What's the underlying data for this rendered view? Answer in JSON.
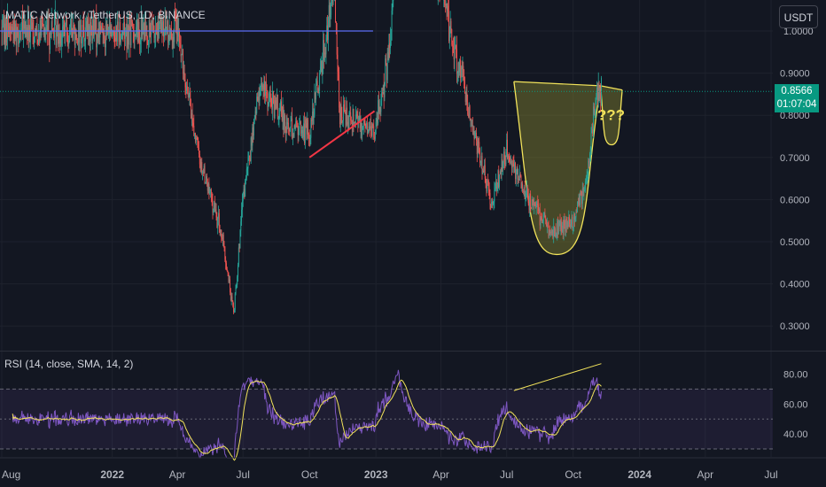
{
  "header": {
    "symbol_title": "MATIC Network / TetherUS, 1D, BINANCE",
    "currency_button": "USDT"
  },
  "price_tag": {
    "price": "0.8566",
    "countdown": "01:07:04"
  },
  "annotation_text": "???",
  "rsi": {
    "label": "RSI (14, close, SMA, 14, 2)"
  },
  "colors": {
    "background": "#131722",
    "candle_up": "#26a69a",
    "candle_down": "#ef5350",
    "price_line": "#089981",
    "cup_shape": "#f2e35b",
    "cup_fill": "#7a7a2e",
    "rsi_line": "#7e57c2",
    "rsi_ma": "#f2e35b",
    "resistance_line": "#5b6ef5",
    "trendline": "#f23645"
  },
  "chart_data": [
    {
      "type": "candlestick",
      "title": "MATIC Network / TetherUS, 1D, BINANCE",
      "y_ticks": [
        "1.0000",
        "0.9000",
        "0.8000",
        "0.7000",
        "0.6000",
        "0.5000",
        "0.4000",
        "0.3000"
      ],
      "ylim": [
        0.27,
        1.07
      ],
      "x_ticks": [
        "Aug",
        "2022",
        "Apr",
        "Jul",
        "Oct",
        "2023",
        "Apr",
        "Jul",
        "Oct",
        "2024",
        "Apr",
        "Jul"
      ],
      "last_price": 0.8566,
      "path_points": [
        [
          "2021-08",
          1.01
        ],
        [
          "2021-09",
          1.0
        ],
        [
          "2022-04",
          1.0
        ],
        [
          "2022-05",
          0.7
        ],
        [
          "2022-06",
          0.52
        ],
        [
          "2022-06-18",
          0.33
        ],
        [
          "2022-07",
          0.6
        ],
        [
          "2022-07-25",
          0.88
        ],
        [
          "2022-08",
          0.85
        ],
        [
          "2022-09",
          0.78
        ],
        [
          "2022-10",
          0.76
        ],
        [
          "2022-11-05",
          1.1
        ],
        [
          "2022-11-12",
          0.8
        ],
        [
          "2022-12",
          0.8
        ],
        [
          "2022-12-30",
          0.76
        ],
        [
          "2023-01-20",
          0.95
        ],
        [
          "2023-02",
          1.3
        ],
        [
          "2023-04",
          1.1
        ],
        [
          "2023-05",
          0.88
        ],
        [
          "2023-06-10",
          0.58
        ],
        [
          "2023-06-20",
          0.65
        ],
        [
          "2023-07",
          0.72
        ],
        [
          "2023-08",
          0.6
        ],
        [
          "2023-09",
          0.52
        ],
        [
          "2023-10",
          0.55
        ],
        [
          "2023-10-20",
          0.65
        ],
        [
          "2023-11",
          0.85
        ],
        [
          "2023-11-09",
          0.8566
        ]
      ],
      "horizontal_line": 1.0,
      "trendline": [
        [
          "2022-10-01",
          0.7
        ],
        [
          "2022-12-30",
          0.81
        ]
      ],
      "cup": {
        "left": [
          "2023-07-11",
          0.88
        ],
        "right": [
          "2023-11-08",
          0.87
        ],
        "bottom": [
          "2023-09-12",
          0.47
        ]
      },
      "handle": {
        "left": [
          "2023-11-08",
          0.87
        ],
        "right": [
          "2023-12-08",
          0.86
        ],
        "bottom": [
          "2023-11-23",
          0.73
        ]
      },
      "annotation": "???"
    },
    {
      "type": "line",
      "title": "RSI (14, close, SMA, 14, 2)",
      "y_ticks": [
        "80.00",
        "60.00",
        "40.00"
      ],
      "ylim": [
        22,
        90
      ],
      "bands": {
        "upper": 70,
        "middle": 50,
        "lower": 30
      },
      "last_rsi": 87,
      "divergence_line": [
        [
          "2023-07-11",
          69
        ],
        [
          "2023-11-09",
          87
        ]
      ]
    }
  ]
}
